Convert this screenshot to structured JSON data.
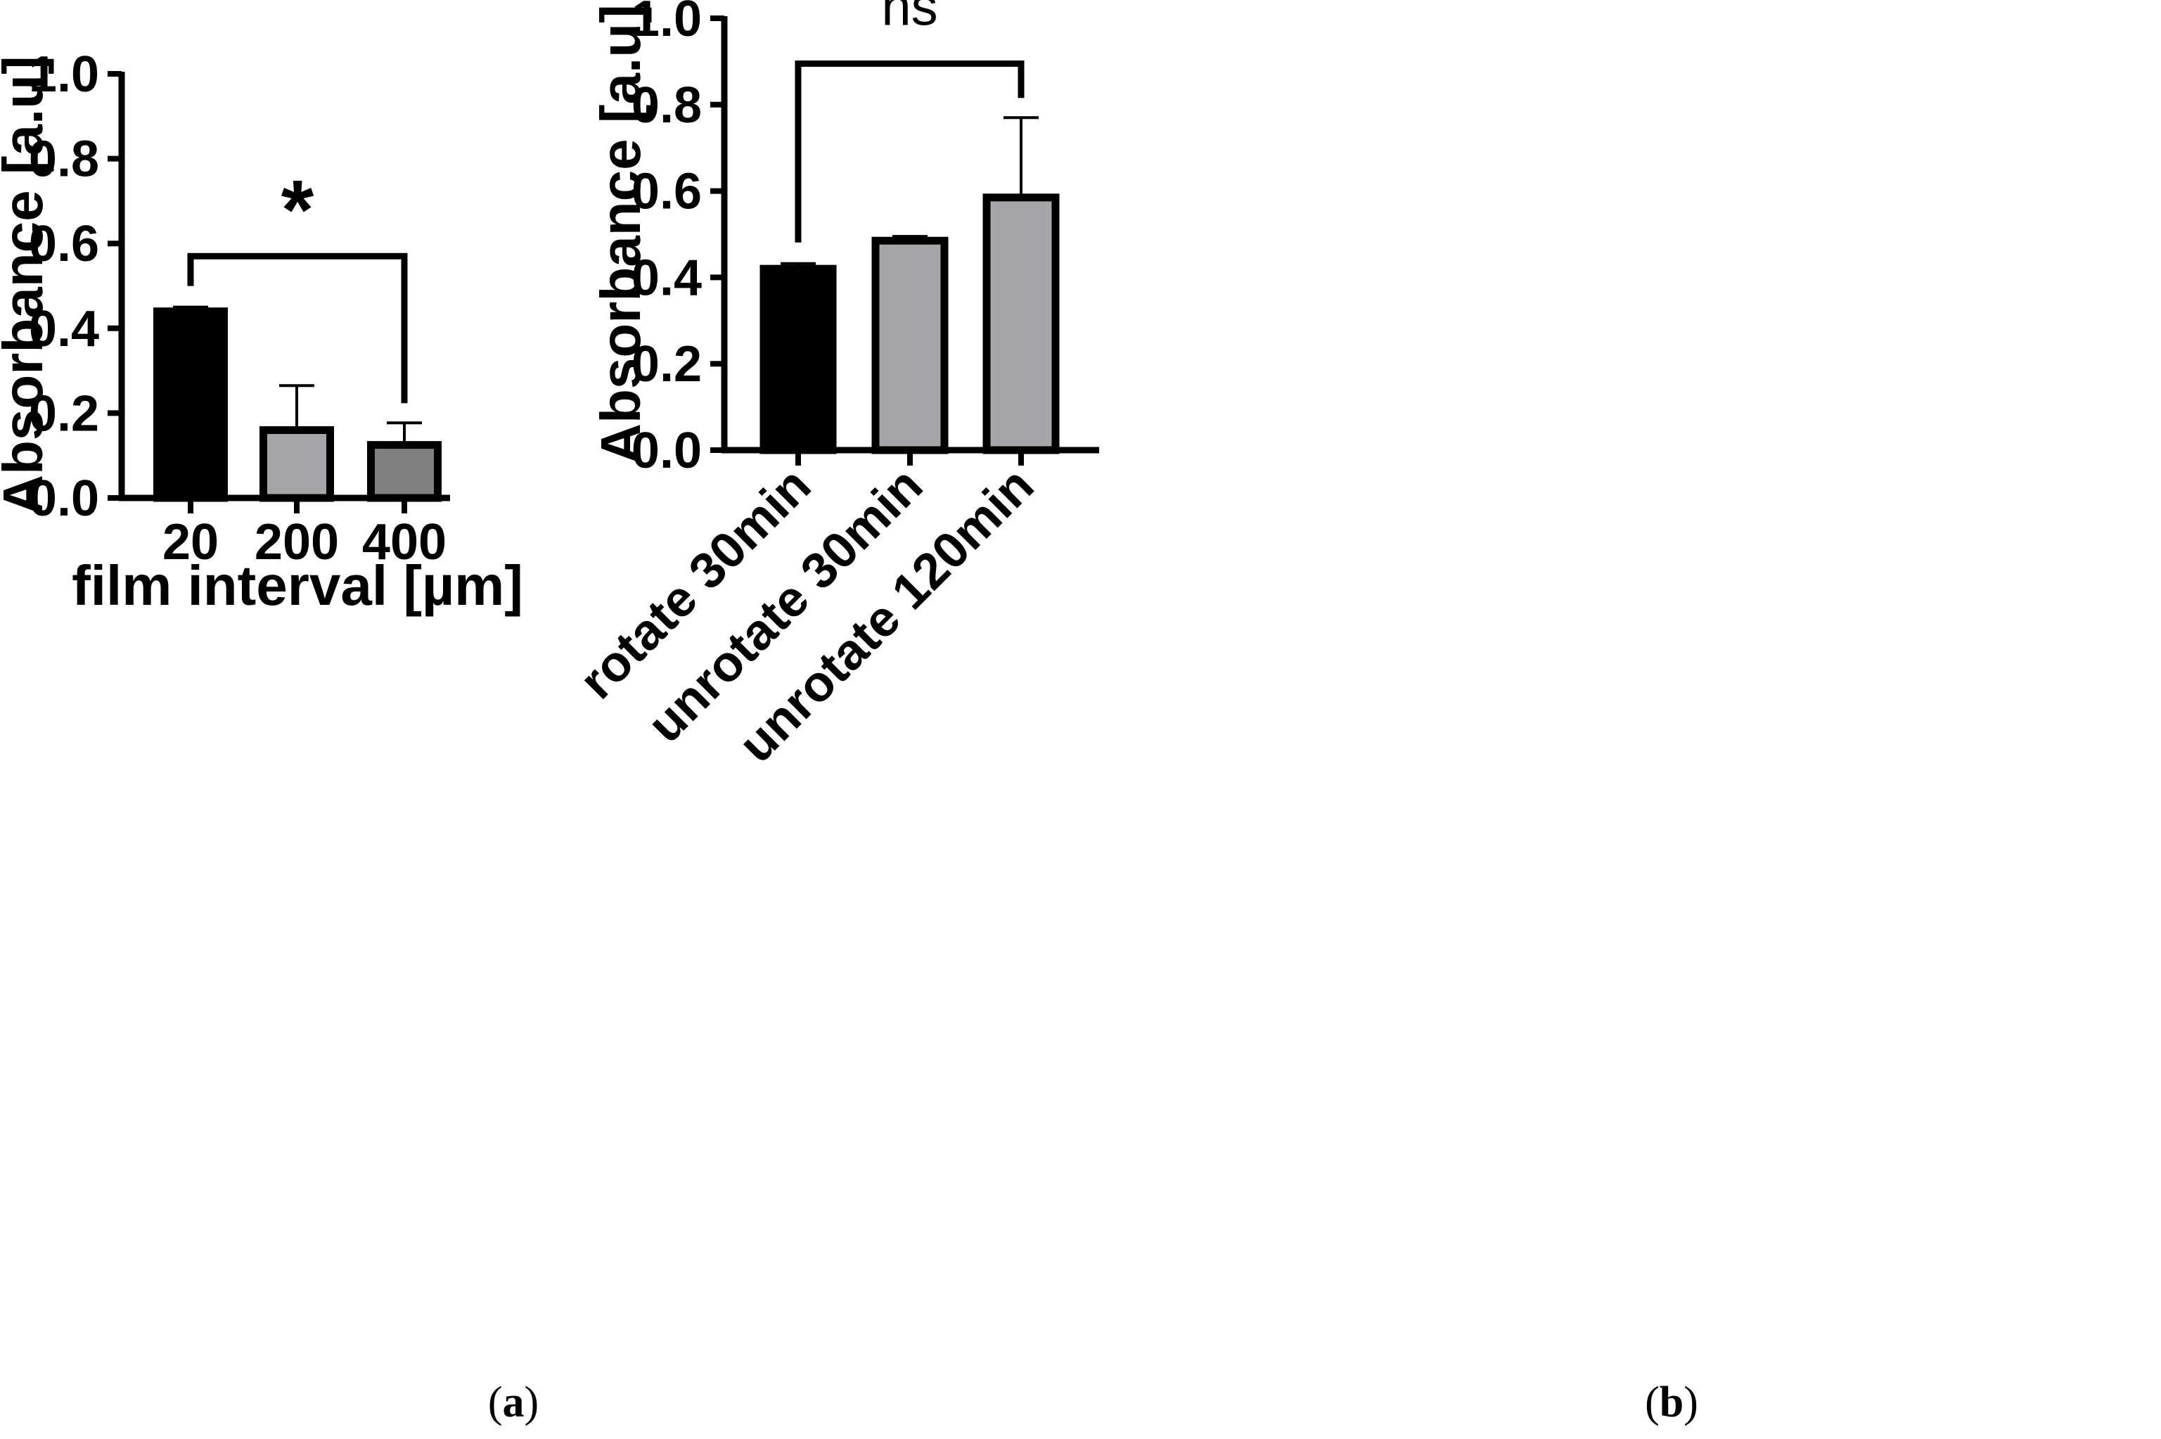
{
  "panels": [
    {
      "panel_label_open": "(",
      "panel_label_letter": "a",
      "panel_label_close": ")"
    },
    {
      "panel_label_open": "(",
      "panel_label_letter": "b",
      "panel_label_close": ")"
    }
  ],
  "chart_data": [
    {
      "type": "bar",
      "categories": [
        "20",
        "200",
        "400"
      ],
      "values": [
        0.44,
        0.16,
        0.125
      ],
      "errors": [
        0.01,
        0.105,
        0.052
      ],
      "bar_colors": [
        "#000000",
        "#a6a6a8",
        "#808080"
      ],
      "ylabel": "Absorbance [a.u]",
      "xlabel": "film interval [µm]",
      "ylim": [
        0,
        1.0
      ],
      "yticks": [
        "0.0",
        "0.2",
        "0.4",
        "0.6",
        "0.8",
        "1.0"
      ],
      "significance": {
        "from": 0,
        "to": 2,
        "label": "*",
        "level": 0.57
      }
    },
    {
      "type": "bar",
      "categories": [
        "rotate 30min",
        "unrotate 30min",
        "unrotate 120min"
      ],
      "values": [
        0.42,
        0.485,
        0.585
      ],
      "errors": [
        0.012,
        0.01,
        0.185
      ],
      "bar_colors": [
        "#000000",
        "#a6a6a8",
        "#a6a6a8"
      ],
      "ylabel": "Absorbance [a.u]",
      "xlabel": "",
      "ylim": [
        0,
        1.0
      ],
      "yticks": [
        "0.0",
        "0.2",
        "0.4",
        "0.6",
        "0.8",
        "1.0"
      ],
      "significance": {
        "from": 0,
        "to": 2,
        "label": "ns",
        "level": 0.895
      }
    }
  ]
}
